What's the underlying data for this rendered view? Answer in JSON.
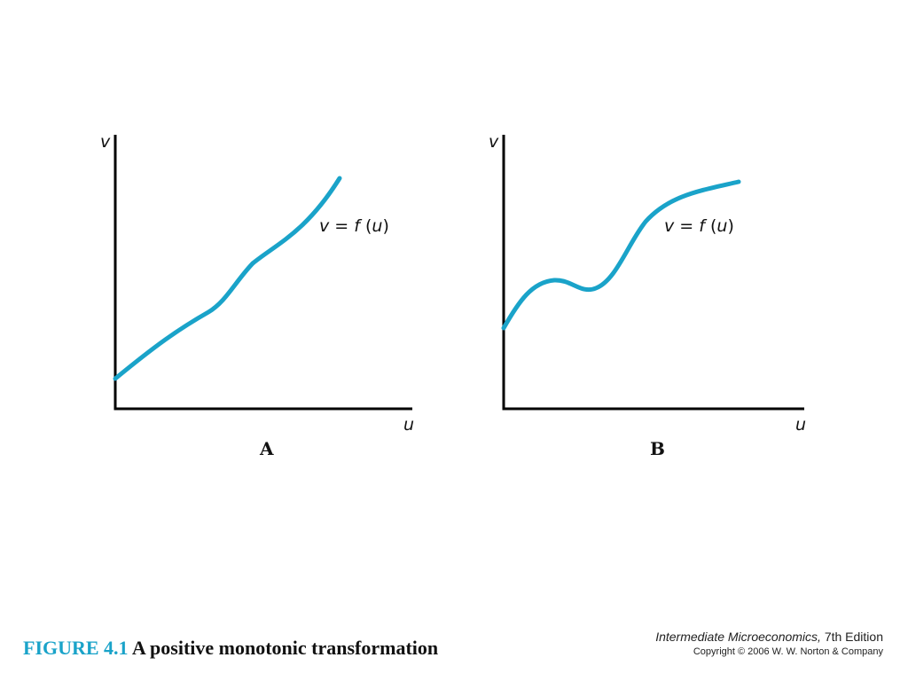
{
  "colors": {
    "curve": "#1aa3c9",
    "axis": "#000000",
    "figure_number": "#1aa3c9"
  },
  "panels": [
    {
      "letter": "A",
      "y_axis_label": "v",
      "x_axis_label": "u",
      "curve_label": {
        "lhs": "v",
        "eq": " = ",
        "fn": "f",
        "open": " (",
        "arg": "u",
        "close": ")"
      }
    },
    {
      "letter": "B",
      "y_axis_label": "v",
      "x_axis_label": "u",
      "curve_label": {
        "lhs": "v",
        "eq": " = ",
        "fn": "f",
        "open": " (",
        "arg": "u",
        "close": ")"
      }
    }
  ],
  "caption": {
    "number": "FIGURE 4.1",
    "title": "A positive monotonic transformation"
  },
  "source": {
    "book_title": "Intermediate Microeconomics,",
    "edition": " 7th Edition",
    "copyright": "Copyright © 2006 W. W. Norton & Company"
  }
}
